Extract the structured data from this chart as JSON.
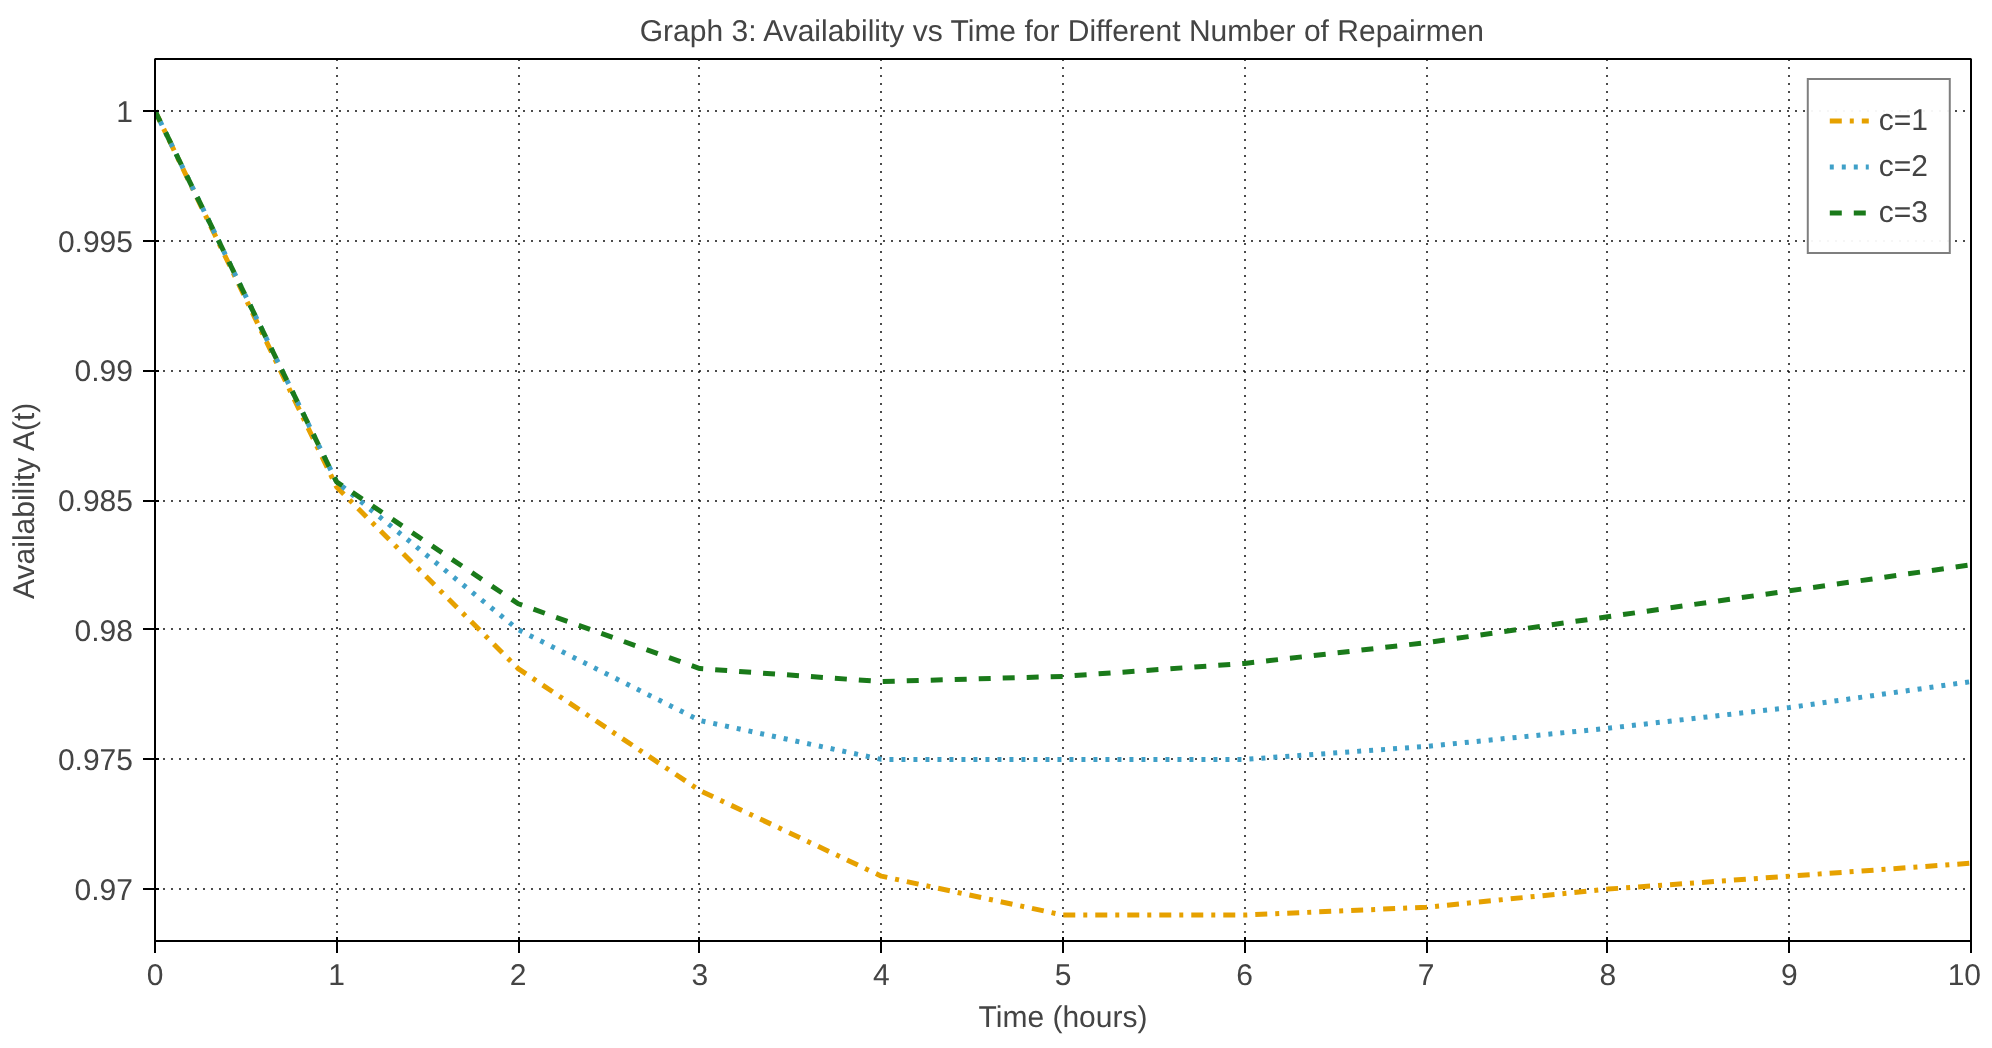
{
  "chart_data": {
    "type": "line",
    "title": "Graph 3: Availability vs Time for Different Number of Repairmen",
    "xlabel": "Time (hours)",
    "ylabel": "Availability A(t)",
    "x": [
      0,
      1,
      2,
      3,
      4,
      5,
      6,
      7,
      8,
      9,
      10
    ],
    "series": [
      {
        "name": "c=1",
        "color": "#e6a100",
        "line_style": "dashdot",
        "values": [
          1,
          0.9855,
          0.9785,
          0.9738,
          0.9705,
          0.969,
          0.969,
          0.9693,
          0.97,
          0.9705,
          0.971
        ]
      },
      {
        "name": "c=2",
        "color": "#3fa0c8",
        "line_style": "dotted",
        "values": [
          1,
          0.9857,
          0.98,
          0.9765,
          0.975,
          0.975,
          0.975,
          0.9755,
          0.9762,
          0.977,
          0.978
        ]
      },
      {
        "name": "c=3",
        "color": "#1a7a1a",
        "line_style": "dashed",
        "values": [
          1,
          0.9857,
          0.981,
          0.9785,
          0.978,
          0.9782,
          0.9787,
          0.9795,
          0.9805,
          0.9815,
          0.9825
        ]
      }
    ],
    "xlim": [
      0,
      10
    ],
    "ylim": [
      0.968,
      1.002
    ],
    "xticks": [
      0,
      1,
      2,
      3,
      4,
      5,
      6,
      7,
      8,
      9,
      10
    ],
    "yticks": [
      0.97,
      0.975,
      0.98,
      0.985,
      0.99,
      0.995,
      1
    ],
    "grid": true,
    "legend": "top right"
  }
}
